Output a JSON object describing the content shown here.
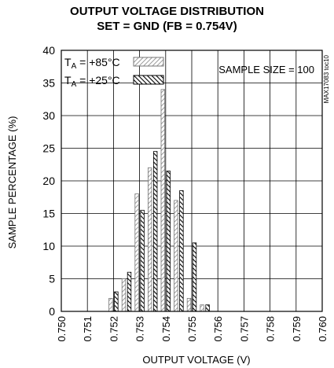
{
  "chart_data": {
    "type": "bar",
    "title": "OUTPUT VOLTAGE DISTRIBUTION",
    "subtitle": "SET = GND (FB = 0.754V)",
    "xlabel": "OUTPUT VOLTAGE (V)",
    "ylabel": "SAMPLE PERCENTAGE (%)",
    "xlim": [
      0.75,
      0.76
    ],
    "ylim": [
      0,
      40
    ],
    "x_ticks": [
      "0.750",
      "0.751",
      "0.752",
      "0.753",
      "0.754",
      "0.755",
      "0.756",
      "0.757",
      "0.758",
      "0.759",
      "0.760"
    ],
    "y_ticks": [
      "0",
      "5",
      "10",
      "15",
      "20",
      "25",
      "30",
      "35",
      "40"
    ],
    "grid": true,
    "annotation": "SAMPLE SIZE = 100",
    "side_label": "MAX17083 toc10",
    "x": [
      0.752,
      0.7525,
      0.753,
      0.7535,
      0.754,
      0.7545,
      0.755,
      0.7555
    ],
    "series": [
      {
        "name_prefix": "T",
        "name_sub": "A",
        "name_suffix": " = +85°C",
        "values": [
          2,
          5,
          18,
          22,
          34,
          17,
          2,
          1
        ],
        "pattern": "light"
      },
      {
        "name_prefix": "T",
        "name_sub": "A",
        "name_suffix": " = +25°C",
        "values": [
          3,
          6,
          15.5,
          24.5,
          21.5,
          18.5,
          10.5,
          1
        ],
        "pattern": "dark"
      }
    ]
  }
}
